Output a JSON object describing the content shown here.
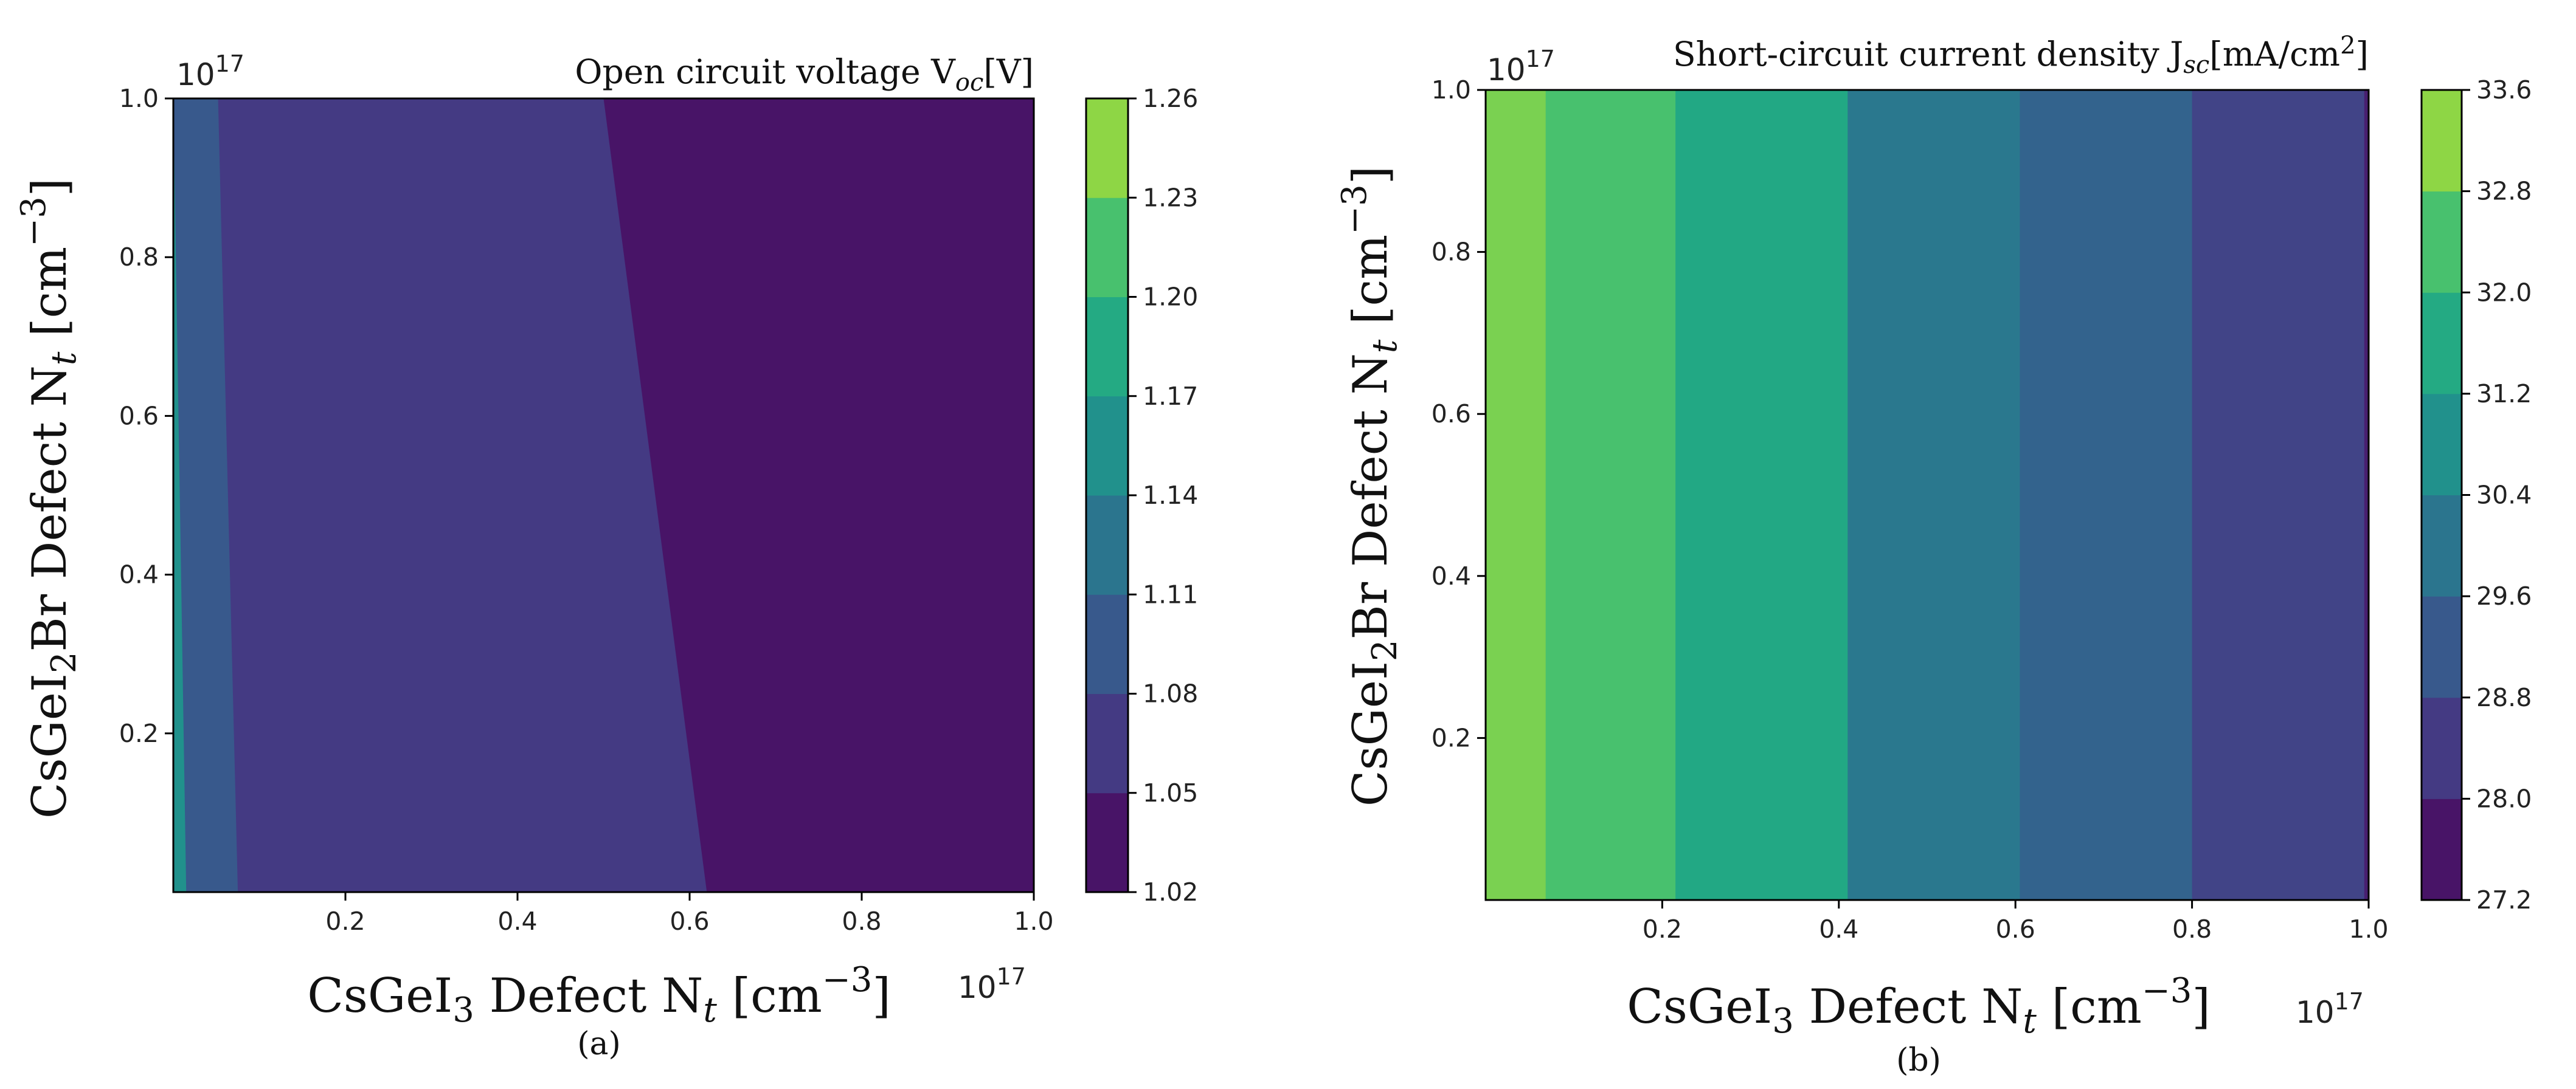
{
  "chart_data": [
    {
      "type": "heatmap",
      "subtype": "filled-contour",
      "panel": "(a)",
      "title_prefix": "Open circuit voltage  V",
      "title_sub": "oc",
      "title_suffix": "[V]",
      "xlabel_prefix": "CsGeI",
      "xlabel_sub1": "3",
      "xlabel_mid": " Defect N",
      "xlabel_sub2": "t",
      "xlabel_unit": " [cm",
      "xlabel_sup": "−3",
      "xlabel_end": "]",
      "ylabel_prefix": "CsGeI",
      "ylabel_sub1": "2",
      "ylabel_mid": "Br Defect N",
      "ylabel_sub2": "t",
      "ylabel_unit": " [cm",
      "ylabel_sup": "−3",
      "ylabel_end": "]",
      "x_offset_base": "10",
      "x_offset_exp": "17",
      "y_offset_base": "10",
      "y_offset_exp": "17",
      "xlim": [
        0.0,
        1.0
      ],
      "ylim": [
        0.0,
        1.0
      ],
      "xticks": [
        "0.2",
        "0.4",
        "0.6",
        "0.8",
        "1.0"
      ],
      "yticks": [
        "0.2",
        "0.4",
        "0.6",
        "0.8",
        "1.0"
      ],
      "colorbar_ticks": [
        "1.02",
        "1.05",
        "1.08",
        "1.11",
        "1.14",
        "1.17",
        "1.20",
        "1.23",
        "1.26"
      ],
      "colorbar_colors": [
        "#481467",
        "#443a83",
        "#38598c",
        "#2b758e",
        "#21918c",
        "#24aa83",
        "#48c16e",
        "#8ed645"
      ],
      "regions": [
        {
          "level_range": [
            1.14,
            1.17
          ],
          "color": "#21918c",
          "boundary_x_at_top": 0.0,
          "boundary_x_at_bottom": 0.015
        },
        {
          "level_range": [
            1.08,
            1.11
          ],
          "color": "#38598c",
          "boundary_x_at_top": 0.052,
          "boundary_x_at_bottom": 0.075
        },
        {
          "level_range": [
            1.05,
            1.08
          ],
          "color": "#443a83",
          "boundary_x_at_top": 0.5,
          "boundary_x_at_bottom": 0.62
        },
        {
          "level_range": [
            1.02,
            1.05
          ],
          "color": "#481467",
          "boundary_x_at_top": 1.0,
          "boundary_x_at_bottom": 1.0
        }
      ]
    },
    {
      "type": "heatmap",
      "subtype": "filled-contour",
      "panel": "(b)",
      "title_prefix": "Short-circuit current density  J",
      "title_sub": "sc",
      "title_suffix": "[mA/cm",
      "title_sup": "2",
      "title_end": "]",
      "xlabel_prefix": "CsGeI",
      "xlabel_sub1": "3",
      "xlabel_mid": " Defect N",
      "xlabel_sub2": "t",
      "xlabel_unit": " [cm",
      "xlabel_sup": "−3",
      "xlabel_end": "]",
      "ylabel_prefix": "CsGeI",
      "ylabel_sub1": "2",
      "ylabel_mid": "Br Defect N",
      "ylabel_sub2": "t",
      "ylabel_unit": " [cm",
      "ylabel_sup": "−3",
      "ylabel_end": "]",
      "x_offset_base": "10",
      "x_offset_exp": "17",
      "y_offset_base": "10",
      "y_offset_exp": "17",
      "xlim": [
        0.0,
        1.0
      ],
      "ylim": [
        0.0,
        1.0
      ],
      "xticks": [
        "0.2",
        "0.4",
        "0.6",
        "0.8",
        "1.0"
      ],
      "yticks": [
        "0.2",
        "0.4",
        "0.6",
        "0.8",
        "1.0"
      ],
      "colorbar_ticks": [
        "27.2",
        "28.0",
        "28.8",
        "29.6",
        "30.4",
        "31.2",
        "32.0",
        "32.8",
        "33.6"
      ],
      "colorbar_colors": [
        "#481467",
        "#443a83",
        "#38598c",
        "#2b758e",
        "#21918c",
        "#24aa83",
        "#48c16e",
        "#8ed645"
      ],
      "bands": [
        {
          "level_range": [
            32.8,
            33.6
          ],
          "color": "#7ad151",
          "x_from": 0.0,
          "x_to": 0.068
        },
        {
          "level_range": [
            32.0,
            32.8
          ],
          "color": "#48c16e",
          "x_from": 0.068,
          "x_to": 0.215
        },
        {
          "level_range": [
            31.2,
            32.0
          ],
          "color": "#22a884",
          "x_from": 0.215,
          "x_to": 0.41
        },
        {
          "level_range": [
            30.4,
            31.2
          ],
          "color": "#2a788e",
          "x_from": 0.41,
          "x_to": 0.605
        },
        {
          "level_range": [
            29.6,
            30.4
          ],
          "color": "#33638d",
          "x_from": 0.605,
          "x_to": 0.8
        },
        {
          "level_range": [
            28.8,
            29.6
          ],
          "color": "#414487",
          "x_from": 0.8,
          "x_to": 0.995
        },
        {
          "level_range": [
            28.0,
            28.8
          ],
          "color": "#481f70",
          "x_from": 0.995,
          "x_to": 1.0
        }
      ]
    }
  ]
}
